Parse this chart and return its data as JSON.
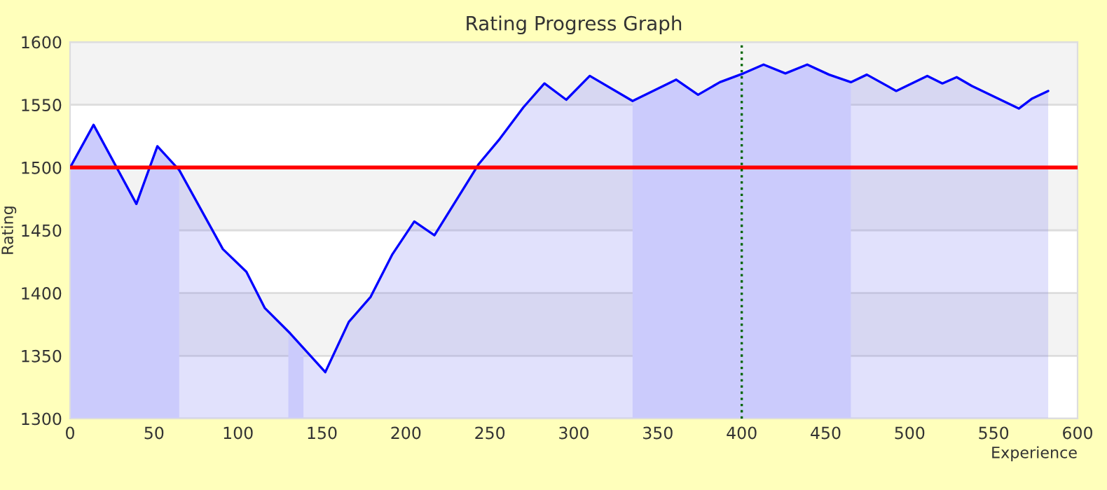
{
  "chart_data": {
    "type": "area",
    "title": "Rating Progress Graph",
    "xlabel": "Experience",
    "ylabel": "Rating",
    "x": [
      0,
      14,
      39.5,
      52,
      65,
      91,
      105,
      116,
      131,
      152,
      166,
      179,
      192,
      205,
      217,
      243.5,
      256,
      270,
      282.5,
      295.5,
      309.5,
      335,
      361,
      374,
      387,
      401,
      413,
      426,
      439,
      452,
      465,
      474.5,
      492,
      510.5,
      519.5,
      528,
      537,
      565,
      573,
      582.5
    ],
    "series": [
      {
        "color": "#0000ff",
        "values": [
          1500,
          1534,
          1471,
          1517,
          1498,
          1435,
          1417,
          1388,
          1368,
          1337,
          1377,
          1397,
          1431,
          1457,
          1446,
          1503,
          1523,
          1548,
          1567,
          1554,
          1573,
          1553,
          1570,
          1558,
          1568,
          1575,
          1582,
          1575,
          1582,
          1574,
          1568,
          1574,
          1561,
          1573,
          1567,
          1572,
          1565,
          1547,
          1555,
          1561
        ]
      }
    ],
    "xlim": [
      0,
      600
    ],
    "ylim": [
      1300,
      1600
    ],
    "xticks": [
      0,
      50,
      100,
      150,
      200,
      250,
      300,
      350,
      400,
      450,
      500,
      550,
      600
    ],
    "yticks": [
      1300,
      1350,
      1400,
      1450,
      1500,
      1550,
      1600
    ],
    "grid": "y",
    "legend": false,
    "ref_lines": [
      {
        "axis": "y",
        "value": 1500,
        "color": "#ff0000",
        "line_style": "solid"
      },
      {
        "axis": "x",
        "value": 400,
        "color": "#006600",
        "line_style": "dotted"
      }
    ],
    "bands": [
      {
        "axis": "x",
        "from": 0,
        "to": 65,
        "color": "#e4e4ff"
      },
      {
        "axis": "x",
        "from": 130,
        "to": 139,
        "color": "#e4e4ff"
      },
      {
        "axis": "x",
        "from": 335,
        "to": 465,
        "color": "#e4e4ff"
      }
    ]
  }
}
